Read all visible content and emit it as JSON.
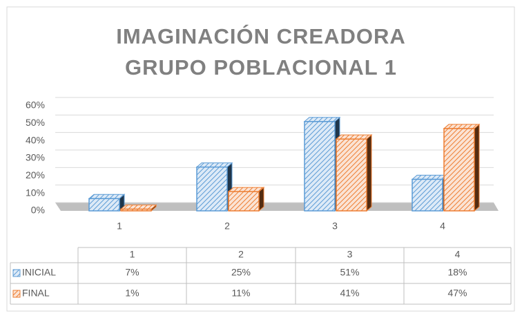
{
  "chart_data": {
    "type": "bar",
    "title": "IMAGINACIÓN CREADORA",
    "subtitle": "GRUPO POBLACIONAL 1",
    "categories": [
      "1",
      "2",
      "3",
      "4"
    ],
    "series": [
      {
        "name": "INICIAL",
        "color": "#5b9bd5",
        "values": [
          7,
          25,
          51,
          18
        ],
        "value_labels": [
          "7%",
          "25%",
          "51%",
          "18%"
        ]
      },
      {
        "name": "FINAL",
        "color": "#ed7d31",
        "values": [
          1,
          11,
          41,
          47
        ],
        "value_labels": [
          "1%",
          "11%",
          "41%",
          "47%"
        ]
      }
    ],
    "ylim": [
      0,
      60
    ],
    "yticks": [
      {
        "value": 0,
        "label": "0%"
      },
      {
        "value": 10,
        "label": "10%"
      },
      {
        "value": 20,
        "label": "20%"
      },
      {
        "value": 30,
        "label": "30%"
      },
      {
        "value": 40,
        "label": "40%"
      },
      {
        "value": 50,
        "label": "50%"
      },
      {
        "value": 60,
        "label": "60%"
      }
    ],
    "grid": true
  }
}
